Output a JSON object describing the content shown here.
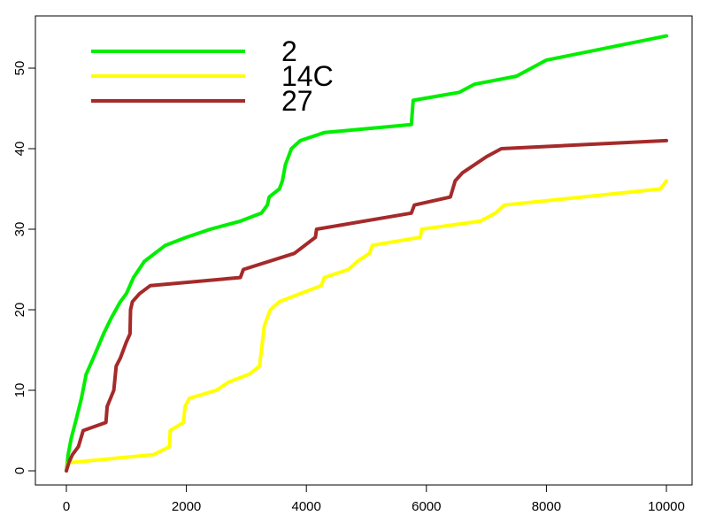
{
  "chart_data": {
    "type": "line",
    "title": "",
    "xlabel": "",
    "ylabel": "",
    "xlim": [
      0,
      10000
    ],
    "ylim": [
      0,
      55
    ],
    "x_ticks": [
      "0",
      "2000",
      "4000",
      "6000",
      "8000",
      "10000"
    ],
    "y_ticks": [
      "0",
      "10",
      "20",
      "30",
      "40",
      "50"
    ],
    "grid": false,
    "legend_position": "top-left",
    "series": [
      {
        "name": "2",
        "color": "#00ee00",
        "points": [
          [
            0,
            0
          ],
          [
            30,
            2
          ],
          [
            80,
            4
          ],
          [
            150,
            6
          ],
          [
            250,
            9
          ],
          [
            330,
            12
          ],
          [
            450,
            14
          ],
          [
            620,
            17
          ],
          [
            750,
            19
          ],
          [
            900,
            21
          ],
          [
            1000,
            22
          ],
          [
            1120,
            24
          ],
          [
            1300,
            26
          ],
          [
            1650,
            28
          ],
          [
            2000,
            29
          ],
          [
            2400,
            30
          ],
          [
            2900,
            31
          ],
          [
            3250,
            32
          ],
          [
            3350,
            33
          ],
          [
            3380,
            34
          ],
          [
            3550,
            35
          ],
          [
            3600,
            36
          ],
          [
            3650,
            38
          ],
          [
            3750,
            40
          ],
          [
            3900,
            41
          ],
          [
            4300,
            42
          ],
          [
            5750,
            43
          ],
          [
            5780,
            46
          ],
          [
            6550,
            47
          ],
          [
            6800,
            48
          ],
          [
            7500,
            49
          ],
          [
            8000,
            51
          ],
          [
            10000,
            54
          ]
        ]
      },
      {
        "name": "14C",
        "color": "#ffff00",
        "points": [
          [
            0,
            0
          ],
          [
            30,
            1
          ],
          [
            1450,
            2
          ],
          [
            1720,
            3
          ],
          [
            1730,
            5
          ],
          [
            1950,
            6
          ],
          [
            1980,
            8
          ],
          [
            2050,
            9
          ],
          [
            2500,
            10
          ],
          [
            2700,
            11
          ],
          [
            3050,
            12
          ],
          [
            3220,
            13
          ],
          [
            3300,
            18
          ],
          [
            3400,
            20
          ],
          [
            3550,
            21
          ],
          [
            3900,
            22
          ],
          [
            4250,
            23
          ],
          [
            4300,
            24
          ],
          [
            4700,
            25
          ],
          [
            4850,
            26
          ],
          [
            5050,
            27
          ],
          [
            5100,
            28
          ],
          [
            5900,
            29
          ],
          [
            5920,
            30
          ],
          [
            6900,
            31
          ],
          [
            7150,
            32
          ],
          [
            7300,
            33
          ],
          [
            9900,
            35
          ],
          [
            10000,
            36
          ]
        ]
      },
      {
        "name": "27",
        "color": "#a52a2a",
        "points": [
          [
            0,
            0
          ],
          [
            40,
            1
          ],
          [
            100,
            2
          ],
          [
            200,
            3
          ],
          [
            280,
            5
          ],
          [
            660,
            6
          ],
          [
            680,
            8
          ],
          [
            790,
            10
          ],
          [
            830,
            13
          ],
          [
            900,
            14
          ],
          [
            950,
            15
          ],
          [
            1000,
            16
          ],
          [
            1060,
            17
          ],
          [
            1070,
            20
          ],
          [
            1100,
            21
          ],
          [
            1220,
            22
          ],
          [
            1400,
            23
          ],
          [
            2900,
            24
          ],
          [
            2950,
            25
          ],
          [
            3800,
            27
          ],
          [
            4150,
            29
          ],
          [
            4170,
            30
          ],
          [
            5750,
            32
          ],
          [
            5800,
            33
          ],
          [
            6400,
            34
          ],
          [
            6480,
            36
          ],
          [
            6600,
            37
          ],
          [
            7000,
            39
          ],
          [
            7250,
            40
          ],
          [
            10000,
            41
          ]
        ]
      }
    ]
  }
}
